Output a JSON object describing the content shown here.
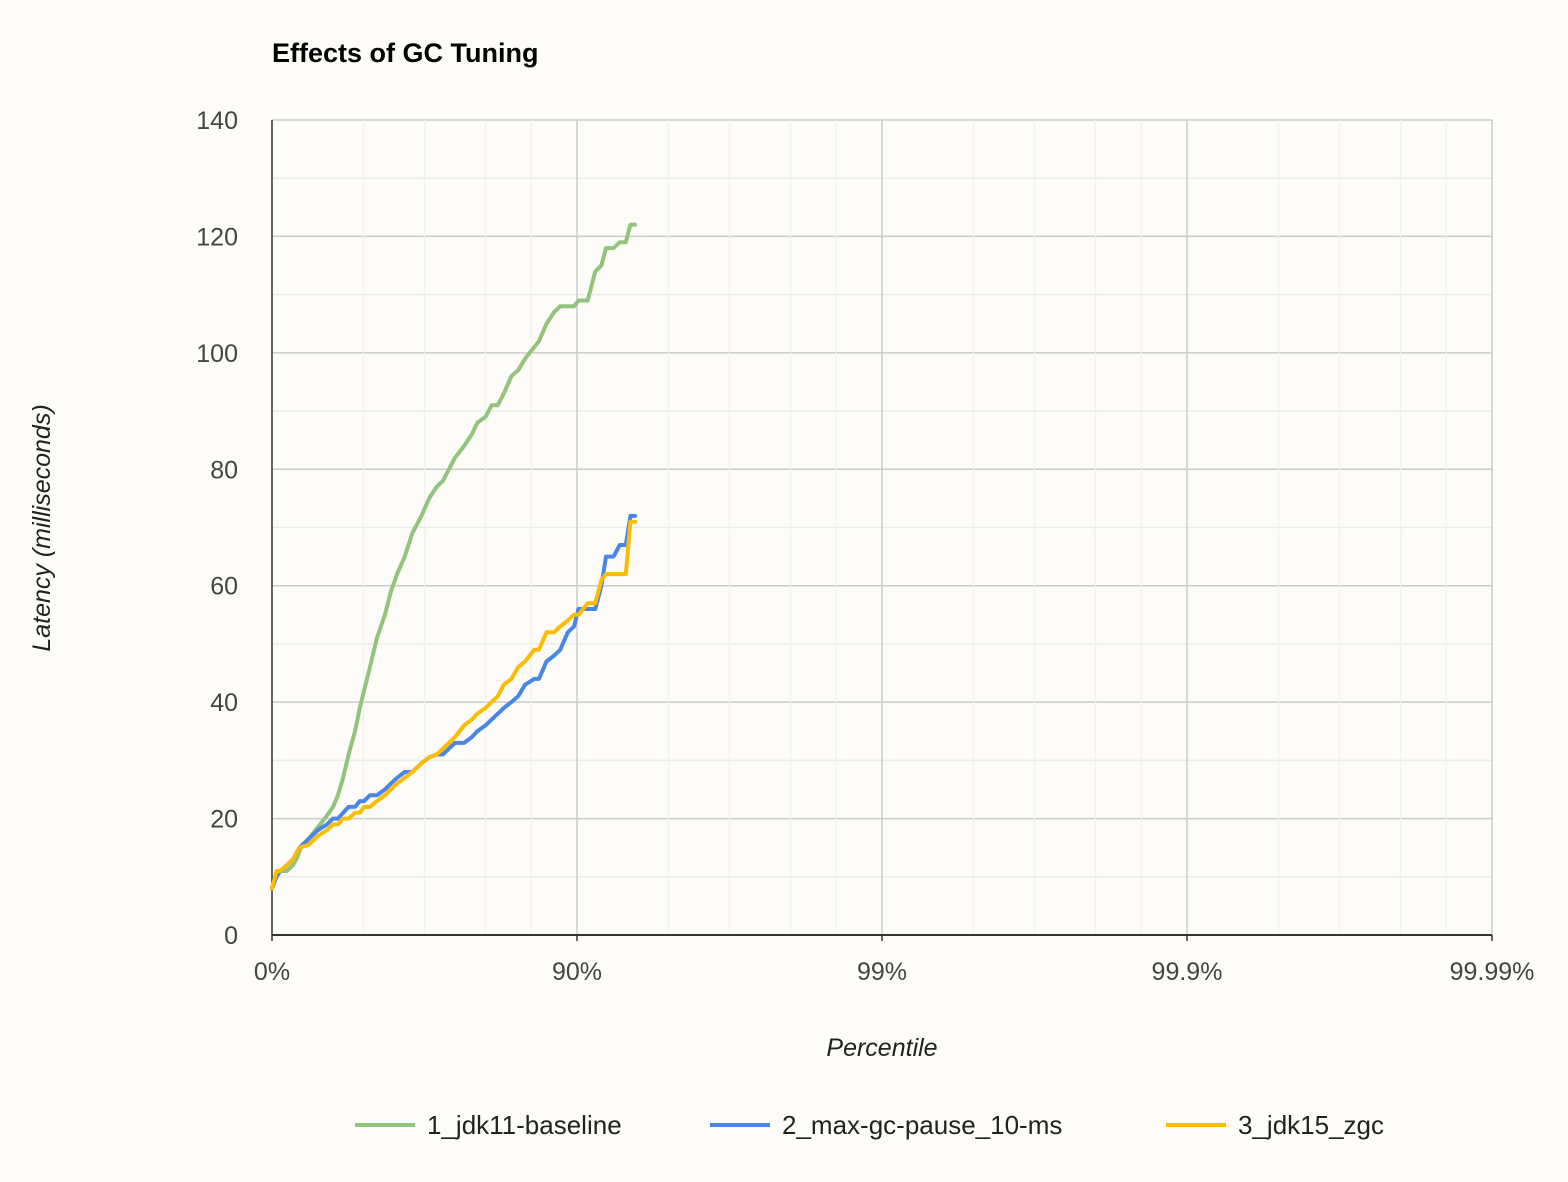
{
  "chart_data": {
    "type": "line",
    "title": "Effects of GC Tuning",
    "xlabel": "Percentile",
    "ylabel": "Latency (milliseconds)",
    "x_scale": "log-percentile",
    "x_ticks": [
      "0%",
      "90%",
      "99%",
      "99.9%",
      "99.99%"
    ],
    "ylim": [
      0,
      140
    ],
    "y_ticks": [
      "0",
      "20",
      "40",
      "60",
      "80",
      "100",
      "120",
      "140"
    ],
    "grid": true,
    "legend_position": "bottom",
    "series": [
      {
        "name": "1_jdk11-baseline",
        "color": "#93c47d",
        "points": [
          [
            0,
            8
          ],
          [
            0.015,
            10.5
          ],
          [
            0.027,
            11
          ],
          [
            0.049,
            11
          ],
          [
            0.069,
            12
          ],
          [
            0.08,
            13
          ],
          [
            0.095,
            15
          ],
          [
            0.12,
            16.5
          ],
          [
            0.15,
            18.5
          ],
          [
            0.18,
            20.5
          ],
          [
            0.2,
            22
          ],
          [
            0.216,
            24
          ],
          [
            0.233,
            27
          ],
          [
            0.251,
            31
          ],
          [
            0.272,
            35
          ],
          [
            0.288,
            39
          ],
          [
            0.302,
            42
          ],
          [
            0.321,
            46
          ],
          [
            0.344,
            51
          ],
          [
            0.37,
            55
          ],
          [
            0.39,
            59
          ],
          [
            0.41,
            62
          ],
          [
            0.435,
            65
          ],
          [
            0.46,
            69
          ],
          [
            0.49,
            72
          ],
          [
            0.515,
            75
          ],
          [
            0.54,
            77
          ],
          [
            0.56,
            78
          ],
          [
            0.58,
            80
          ],
          [
            0.6,
            82
          ],
          [
            0.63,
            84
          ],
          [
            0.655,
            86
          ],
          [
            0.673,
            88
          ],
          [
            0.7,
            89
          ],
          [
            0.72,
            91
          ],
          [
            0.74,
            91
          ],
          [
            0.76,
            93
          ],
          [
            0.785,
            96
          ],
          [
            0.807,
            97
          ],
          [
            0.83,
            99
          ],
          [
            0.86,
            101
          ],
          [
            0.875,
            102
          ],
          [
            0.9,
            105
          ],
          [
            0.925,
            107
          ],
          [
            0.945,
            108
          ],
          [
            0.97,
            108
          ],
          [
            0.99,
            108
          ],
          [
            1.005,
            109
          ],
          [
            1.035,
            109
          ],
          [
            1.06,
            114
          ],
          [
            1.08,
            115
          ],
          [
            1.095,
            118
          ],
          [
            1.12,
            118
          ],
          [
            1.14,
            119
          ],
          [
            1.16,
            119
          ],
          [
            1.175,
            122
          ],
          [
            1.19,
            122
          ]
        ]
      },
      {
        "name": "2_max-gc-pause_10-ms",
        "color": "#4a86e8",
        "points": [
          [
            0,
            8
          ],
          [
            0.015,
            10
          ],
          [
            0.027,
            11
          ],
          [
            0.049,
            12
          ],
          [
            0.069,
            13
          ],
          [
            0.09,
            15
          ],
          [
            0.12,
            16.5
          ],
          [
            0.15,
            18
          ],
          [
            0.18,
            19
          ],
          [
            0.2,
            20
          ],
          [
            0.216,
            20
          ],
          [
            0.233,
            21
          ],
          [
            0.251,
            22
          ],
          [
            0.272,
            22
          ],
          [
            0.288,
            23
          ],
          [
            0.302,
            23
          ],
          [
            0.321,
            24
          ],
          [
            0.344,
            24
          ],
          [
            0.37,
            25
          ],
          [
            0.39,
            26
          ],
          [
            0.41,
            27
          ],
          [
            0.435,
            28
          ],
          [
            0.46,
            28
          ],
          [
            0.49,
            29.5
          ],
          [
            0.515,
            30.5
          ],
          [
            0.54,
            31
          ],
          [
            0.56,
            31
          ],
          [
            0.58,
            32
          ],
          [
            0.6,
            33
          ],
          [
            0.63,
            33
          ],
          [
            0.655,
            34
          ],
          [
            0.673,
            35
          ],
          [
            0.7,
            36
          ],
          [
            0.72,
            37
          ],
          [
            0.74,
            38
          ],
          [
            0.76,
            39
          ],
          [
            0.785,
            40
          ],
          [
            0.807,
            41
          ],
          [
            0.83,
            43
          ],
          [
            0.86,
            44
          ],
          [
            0.875,
            44
          ],
          [
            0.9,
            47
          ],
          [
            0.925,
            48
          ],
          [
            0.945,
            49
          ],
          [
            0.97,
            52
          ],
          [
            0.99,
            53
          ],
          [
            1.005,
            56
          ],
          [
            1.035,
            56
          ],
          [
            1.06,
            56
          ],
          [
            1.08,
            60
          ],
          [
            1.095,
            65
          ],
          [
            1.12,
            65
          ],
          [
            1.14,
            67
          ],
          [
            1.16,
            67
          ],
          [
            1.175,
            72
          ],
          [
            1.19,
            72
          ]
        ]
      },
      {
        "name": "3_jdk15_zgc",
        "color": "#fbbc04",
        "points": [
          [
            0,
            8
          ],
          [
            0.015,
            11
          ],
          [
            0.027,
            11
          ],
          [
            0.049,
            12
          ],
          [
            0.069,
            13
          ],
          [
            0.09,
            15
          ],
          [
            0.12,
            15.5
          ],
          [
            0.15,
            17
          ],
          [
            0.18,
            18
          ],
          [
            0.2,
            19
          ],
          [
            0.216,
            19
          ],
          [
            0.233,
            20
          ],
          [
            0.251,
            20
          ],
          [
            0.272,
            21
          ],
          [
            0.288,
            21
          ],
          [
            0.302,
            22
          ],
          [
            0.321,
            22
          ],
          [
            0.344,
            23
          ],
          [
            0.37,
            24
          ],
          [
            0.39,
            25
          ],
          [
            0.41,
            26
          ],
          [
            0.435,
            27
          ],
          [
            0.46,
            28
          ],
          [
            0.49,
            29.5
          ],
          [
            0.515,
            30.5
          ],
          [
            0.54,
            31
          ],
          [
            0.56,
            32
          ],
          [
            0.58,
            33
          ],
          [
            0.6,
            34
          ],
          [
            0.63,
            36
          ],
          [
            0.655,
            37
          ],
          [
            0.673,
            38
          ],
          [
            0.7,
            39
          ],
          [
            0.72,
            40
          ],
          [
            0.74,
            41
          ],
          [
            0.76,
            43
          ],
          [
            0.785,
            44
          ],
          [
            0.807,
            46
          ],
          [
            0.83,
            47
          ],
          [
            0.86,
            49
          ],
          [
            0.875,
            49
          ],
          [
            0.9,
            52
          ],
          [
            0.925,
            52
          ],
          [
            0.945,
            53
          ],
          [
            0.97,
            54
          ],
          [
            0.99,
            55
          ],
          [
            1.005,
            55
          ],
          [
            1.035,
            57
          ],
          [
            1.06,
            57
          ],
          [
            1.08,
            61
          ],
          [
            1.095,
            62
          ],
          [
            1.12,
            62
          ],
          [
            1.14,
            62
          ],
          [
            1.16,
            62
          ],
          [
            1.175,
            71
          ],
          [
            1.19,
            71
          ]
        ]
      }
    ]
  }
}
